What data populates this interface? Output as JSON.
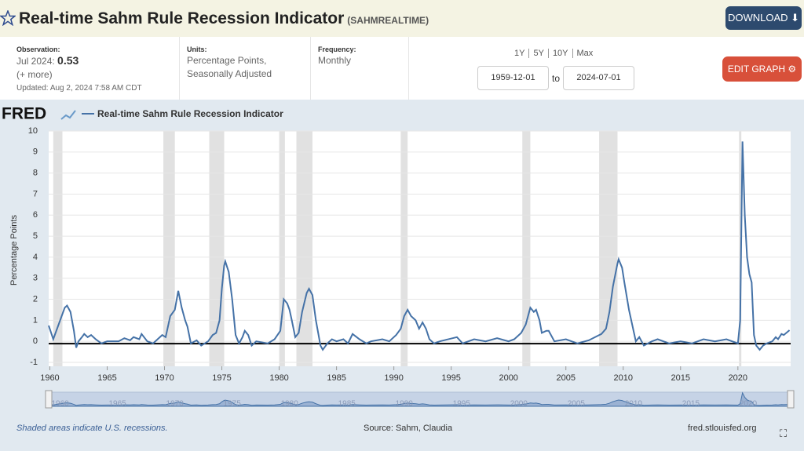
{
  "header": {
    "title": "Real-time Sahm Rule Recession Indicator",
    "series_id": "(SAHMREALTIME)",
    "download": "DOWNLOAD"
  },
  "info": {
    "observation": {
      "label": "Observation:",
      "period": "Jul 2024:",
      "value": 0.53,
      "more": "(+ more)",
      "updated_label": "Updated:",
      "updated": "Aug 2, 2024 7:58 AM CDT"
    },
    "units": {
      "label": "Units:",
      "lines": [
        "Percentage Points,",
        "Seasonally Adjusted"
      ]
    },
    "frequency": {
      "label": "Frequency:",
      "value": "Monthly"
    }
  },
  "controls": {
    "ranges": [
      "1Y",
      "5Y",
      "10Y",
      "Max"
    ],
    "start": "1959-12-01",
    "to": "to",
    "end": "2024-07-01",
    "edit": "EDIT GRAPH"
  },
  "logo": "FRED",
  "chart_data": {
    "type": "line",
    "y_label": "Percentage Points",
    "x": [
      1959.9,
      1960.3,
      1961.3,
      1961.5,
      1961.8,
      1962.1,
      1962.3,
      1962.5,
      1962.8,
      1963,
      1963.3,
      1963.6,
      1964,
      1964.5,
      1965,
      1966,
      1966.5,
      1967,
      1967.3,
      1967.8,
      1968,
      1968.5,
      1969,
      1969.8,
      1970.1,
      1970.5,
      1970.9,
      1971.2,
      1971.5,
      1971.8,
      1972,
      1972.3,
      1972.8,
      1973.2,
      1973.8,
      1974.2,
      1974.5,
      1974.8,
      1975,
      1975.2,
      1975.3,
      1975.6,
      1975.9,
      1976.2,
      1976.5,
      1976.8,
      1977,
      1977.3,
      1977.6,
      1978,
      1979,
      1979.6,
      1980.1,
      1980.4,
      1980.7,
      1980.9,
      1981.1,
      1981.4,
      1981.7,
      1982,
      1982.4,
      1982.6,
      1982.9,
      1983.2,
      1983.6,
      1983.8,
      1984.2,
      1984.6,
      1985,
      1985.6,
      1986,
      1986.4,
      1987,
      1987.6,
      1988,
      1989,
      1989.6,
      1990.2,
      1990.6,
      1990.9,
      1991.2,
      1991.5,
      1991.9,
      1992.2,
      1992.5,
      1992.8,
      1993.1,
      1993.5,
      1994,
      1995.5,
      1996,
      1997,
      1998,
      1999,
      2000,
      2000.5,
      2001.1,
      2001.5,
      2001.9,
      2002.2,
      2002.4,
      2002.7,
      2002.9,
      2003.3,
      2003.5,
      2004,
      2005,
      2006,
      2007,
      2008.1,
      2008.5,
      2008.8,
      2009.1,
      2009.5,
      2009.6,
      2009.9,
      2010.1,
      2010.5,
      2010.9,
      2011.1,
      2011.4,
      2011.8,
      2012.5,
      2013,
      2014,
      2015,
      2016,
      2017,
      2018,
      2019,
      2020,
      2020.2,
      2020.4,
      2020.6,
      2020.8,
      2021,
      2021.2,
      2021.4,
      2021.6,
      2021.9,
      2022.2,
      2022.5,
      2023,
      2023.3,
      2023.5,
      2023.8,
      2024,
      2024.5
    ],
    "series": [
      {
        "name": "Real-time Sahm Rule Recession Indicator",
        "color": "#4572a7",
        "values": [
          0.75,
          0.1,
          1.6,
          1.7,
          1.4,
          0.5,
          -0.3,
          0,
          0.2,
          0.35,
          0.2,
          0.3,
          0.1,
          -0.1,
          0,
          0,
          0.15,
          0.05,
          0.2,
          0.1,
          0.35,
          0,
          -0.1,
          0.3,
          0.2,
          1.2,
          1.5,
          2.4,
          1.6,
          1,
          0.7,
          -0.1,
          0.05,
          -0.2,
          0,
          0.3,
          0.4,
          1,
          2.5,
          3.6,
          3.8,
          3.3,
          2,
          0.3,
          -0.1,
          0.2,
          0.5,
          0.3,
          -0.2,
          0,
          -0.1,
          0.1,
          0.5,
          2,
          1.8,
          1.5,
          1,
          0.2,
          0.4,
          1.4,
          2.3,
          2.5,
          2.2,
          1,
          -0.2,
          -0.4,
          -0.1,
          0.1,
          0,
          0.1,
          -0.1,
          0.35,
          0.1,
          -0.1,
          0,
          0.1,
          0,
          0.3,
          0.6,
          1.2,
          1.5,
          1.2,
          1,
          0.6,
          0.9,
          0.6,
          0.1,
          -0.1,
          0,
          0.2,
          -0.1,
          0.1,
          0,
          0.15,
          0,
          0.1,
          0.4,
          0.8,
          1.6,
          1.4,
          1.5,
          1,
          0.4,
          0.5,
          0.5,
          0,
          0.1,
          -0.1,
          0.05,
          0.35,
          0.6,
          1.4,
          2.6,
          3.7,
          3.9,
          3.5,
          2.8,
          1.5,
          0.5,
          0,
          0.2,
          -0.2,
          0,
          0.1,
          -0.1,
          0,
          -0.1,
          0.1,
          0,
          0.1,
          -0.1,
          1,
          9.5,
          6,
          4,
          3.2,
          2.8,
          0.3,
          -0.2,
          -0.4,
          -0.2,
          -0.1,
          0,
          0.2,
          0.1,
          0.35,
          0.3,
          0.53
        ]
      }
    ],
    "recessions": [
      [
        1960.3,
        1961.1
      ],
      [
        1969.9,
        1970.9
      ],
      [
        1973.9,
        1975.2
      ],
      [
        1980,
        1980.5
      ],
      [
        1981.5,
        1982.9
      ],
      [
        1990.6,
        1991.2
      ],
      [
        2001.2,
        2001.9
      ],
      [
        2007.9,
        2009.5
      ],
      [
        2020.1,
        2020.3
      ]
    ],
    "xlim": [
      1959.9,
      2024.6
    ],
    "ylim": [
      -1,
      10
    ],
    "xticks": [
      1960,
      1965,
      1970,
      1975,
      1980,
      1985,
      1990,
      1995,
      2000,
      2005,
      2010,
      2015,
      2020
    ],
    "yticks": [
      -1,
      0,
      1,
      2,
      3,
      4,
      5,
      6,
      7,
      8,
      9,
      10
    ],
    "grid": true,
    "recession_color": "#e1e1e1"
  },
  "footer": {
    "note": "Shaded areas indicate U.S. recessions.",
    "source": "Source: Sahm, Claudia",
    "site": "fred.stlouisfed.org"
  }
}
